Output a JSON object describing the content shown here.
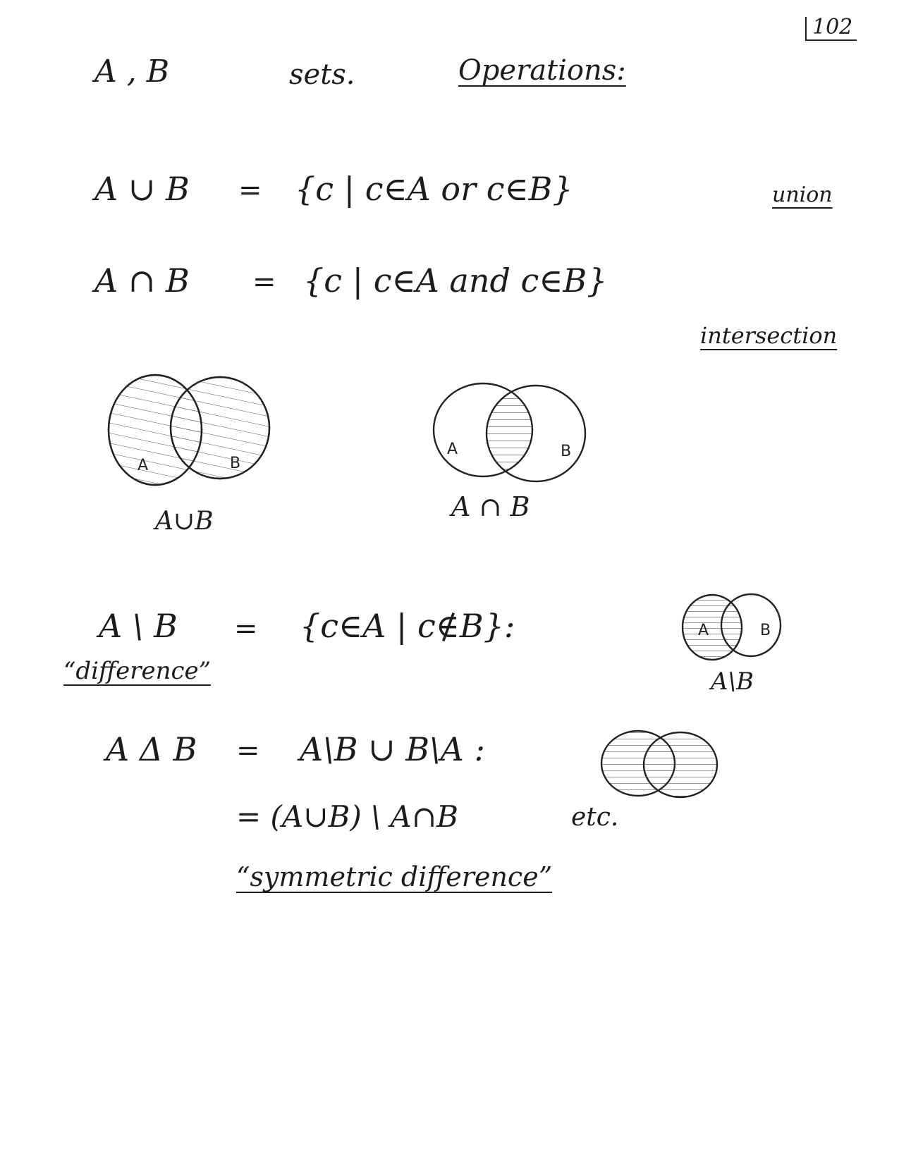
{
  "page": {
    "number": "102"
  },
  "heading": {
    "left": "A , B",
    "middle": "sets.",
    "title": "Operations:"
  },
  "union": {
    "lhs": "A ∪ B",
    "eq": "=",
    "rhs": "{c | c∈A or c∈B}",
    "name": "union"
  },
  "intersection": {
    "lhs": "A ∩ B",
    "eq": "=",
    "rhs": "{c | c∈A and c∈B}",
    "name": "intersection"
  },
  "diagram_union": {
    "label_a": "A",
    "label_b": "B",
    "caption": "A∪B"
  },
  "diagram_intersection": {
    "label_a": "A",
    "label_b": "B",
    "caption": "A ∩ B"
  },
  "difference": {
    "lhs": "A \\ B",
    "eq": "=",
    "rhs": "{c∈A | c∉B}:",
    "name": "“difference”",
    "diagram_label_a": "A",
    "diagram_label_b": "B",
    "caption": "A\\B"
  },
  "symmetric": {
    "lhs": "A Δ B",
    "eq": "=",
    "rhs1": "A\\B ∪ B\\A :",
    "rhs2": "= (A∪B) \\ A∩B",
    "etc": "etc.",
    "name": "“symmetric difference”"
  }
}
